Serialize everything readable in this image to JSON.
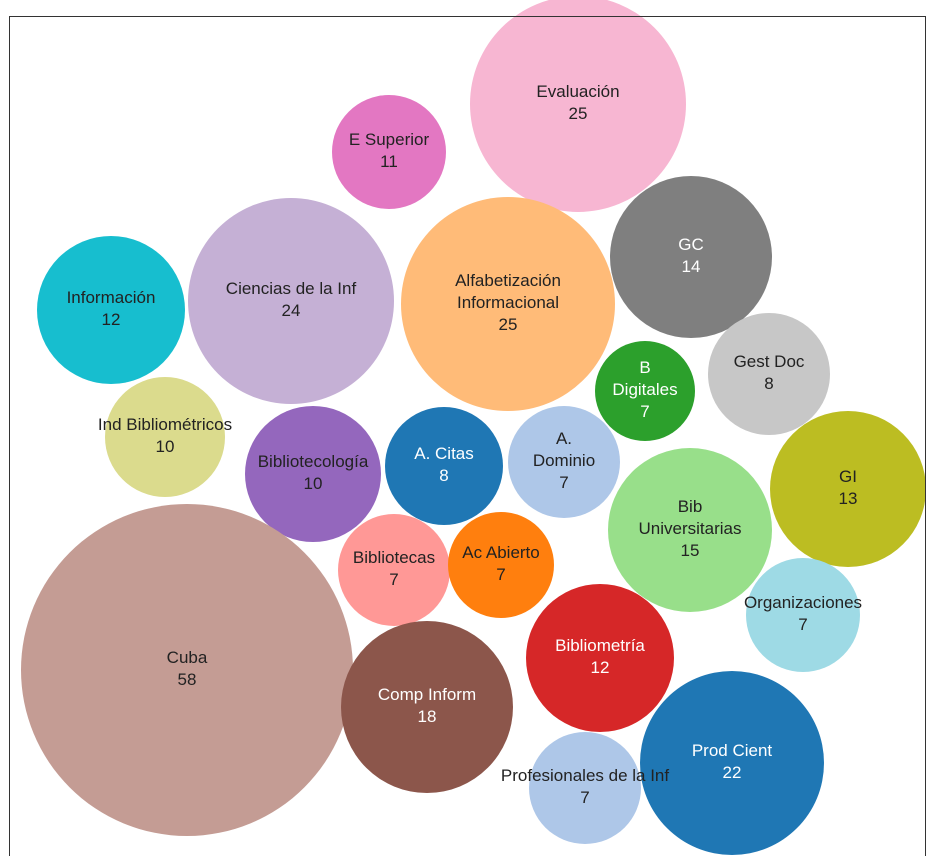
{
  "title": "",
  "chart_data": {
    "type": "bubble",
    "title": "",
    "nodes": [
      {
        "lines": [
          "Evaluación"
        ],
        "value": 25,
        "color": "#f7b6d2",
        "text_color": "#222222"
      },
      {
        "lines": [
          "E Superior"
        ],
        "value": 11,
        "color": "#e377c2",
        "text_color": "#222222"
      },
      {
        "lines": [
          "GC"
        ],
        "value": 14,
        "color": "#7f7f7f",
        "text_color": "#ffffff"
      },
      {
        "lines": [
          "Información"
        ],
        "value": 12,
        "color": "#17becf",
        "text_color": "#222222"
      },
      {
        "lines": [
          "Ciencias de la Inf"
        ],
        "value": 24,
        "color": "#c5b0d5",
        "text_color": "#222222"
      },
      {
        "lines": [
          "Alfabetización",
          "Informacional"
        ],
        "value": 25,
        "color": "#ffbb78",
        "text_color": "#222222"
      },
      {
        "lines": [
          "Gest Doc"
        ],
        "value": 8,
        "color": "#c7c7c7",
        "text_color": "#222222"
      },
      {
        "lines": [
          "B",
          "Digitales"
        ],
        "value": 7,
        "color": "#2ca02c",
        "text_color": "#ffffff"
      },
      {
        "lines": [
          "Ind Bibliométricos"
        ],
        "value": 10,
        "color": "#dbdb8d",
        "text_color": "#222222"
      },
      {
        "lines": [
          "Bibliotecología"
        ],
        "value": 10,
        "color": "#9467bd",
        "text_color": "#222222"
      },
      {
        "lines": [
          "A. Citas"
        ],
        "value": 8,
        "color": "#1f77b4",
        "text_color": "#ffffff"
      },
      {
        "lines": [
          "A.",
          "Dominio"
        ],
        "value": 7,
        "color": "#aec7e8",
        "text_color": "#222222"
      },
      {
        "lines": [
          "GI"
        ],
        "value": 13,
        "color": "#bcbd22",
        "text_color": "#222222"
      },
      {
        "lines": [
          "Bib",
          "Universitarias"
        ],
        "value": 15,
        "color": "#98df8a",
        "text_color": "#222222"
      },
      {
        "lines": [
          "Bibliotecas"
        ],
        "value": 7,
        "color": "#ff9896",
        "text_color": "#222222"
      },
      {
        "lines": [
          "Ac Abierto"
        ],
        "value": 7,
        "color": "#ff7f0e",
        "text_color": "#222222"
      },
      {
        "lines": [
          "Organizaciones"
        ],
        "value": 7,
        "color": "#9edae5",
        "text_color": "#222222"
      },
      {
        "lines": [
          "Cuba"
        ],
        "value": 58,
        "color": "#c49c94",
        "text_color": "#222222"
      },
      {
        "lines": [
          "Bibliometría"
        ],
        "value": 12,
        "color": "#d62728",
        "text_color": "#ffffff"
      },
      {
        "lines": [
          "Comp Inform"
        ],
        "value": 18,
        "color": "#8c564b",
        "text_color": "#ffffff"
      },
      {
        "lines": [
          "Prod Cient"
        ],
        "value": 22,
        "color": "#1f77b4",
        "text_color": "#ffffff"
      },
      {
        "lines": [
          "Profesionales de la Inf"
        ],
        "value": 7,
        "color": "#aec7e8",
        "text_color": "#222222"
      }
    ]
  }
}
